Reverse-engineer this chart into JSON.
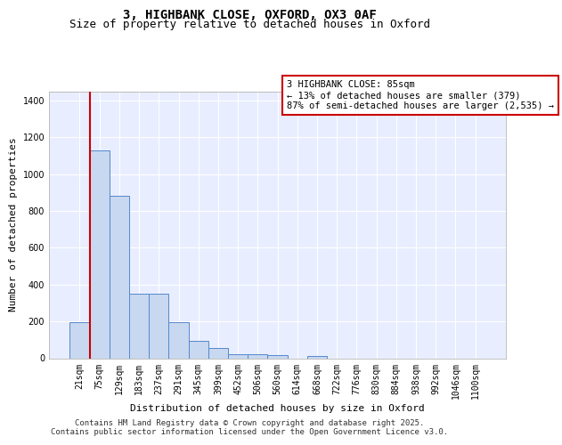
{
  "title_line1": "3, HIGHBANK CLOSE, OXFORD, OX3 0AF",
  "title_line2": "Size of property relative to detached houses in Oxford",
  "xlabel": "Distribution of detached houses by size in Oxford",
  "ylabel": "Number of detached properties",
  "bar_categories": [
    "21sqm",
    "75sqm",
    "129sqm",
    "183sqm",
    "237sqm",
    "291sqm",
    "345sqm",
    "399sqm",
    "452sqm",
    "506sqm",
    "560sqm",
    "614sqm",
    "668sqm",
    "722sqm",
    "776sqm",
    "830sqm",
    "884sqm",
    "938sqm",
    "992sqm",
    "1046sqm",
    "1100sqm"
  ],
  "bar_values": [
    195,
    1130,
    880,
    350,
    350,
    195,
    95,
    55,
    20,
    20,
    15,
    0,
    10,
    0,
    0,
    0,
    0,
    0,
    0,
    0,
    0
  ],
  "bar_color": "#c8d8f0",
  "bar_edge_color": "#5588cc",
  "marker_color": "#cc0000",
  "annotation_text": "3 HIGHBANK CLOSE: 85sqm\n← 13% of detached houses are smaller (379)\n87% of semi-detached houses are larger (2,535) →",
  "annotation_box_color": "#ffffff",
  "annotation_box_edge_color": "#cc0000",
  "ylim": [
    0,
    1450
  ],
  "yticks": [
    0,
    200,
    400,
    600,
    800,
    1000,
    1200,
    1400
  ],
  "background_color": "#e8eeff",
  "grid_color": "#ffffff",
  "footer_line1": "Contains HM Land Registry data © Crown copyright and database right 2025.",
  "footer_line2": "Contains public sector information licensed under the Open Government Licence v3.0.",
  "title_fontsize": 10,
  "subtitle_fontsize": 9,
  "axis_label_fontsize": 8,
  "tick_fontsize": 7,
  "annotation_fontsize": 7.5,
  "footer_fontsize": 6.5
}
